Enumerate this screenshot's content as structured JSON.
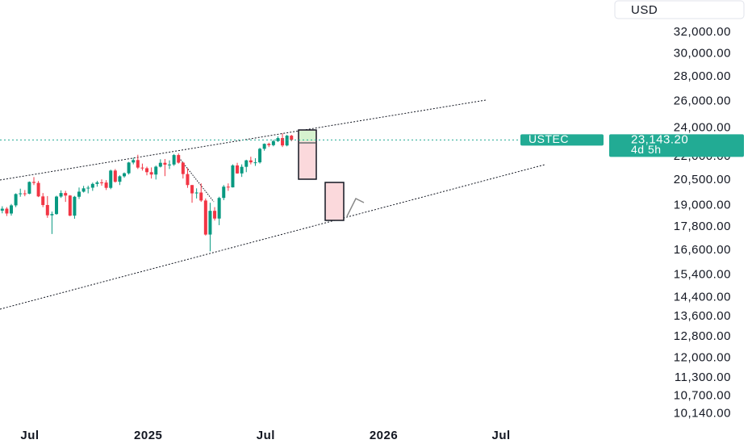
{
  "chart_data": {
    "type": "candlestick",
    "log_scale": true,
    "currency": "USD",
    "symbol": "USTEC",
    "countdown": "4d 5h",
    "last_price": {
      "value": 23143.2,
      "label": "23,143.20"
    },
    "up_color": "#089981",
    "down_color": "#f23645",
    "price_line_color": "#22ab94",
    "open": [
      18700,
      18810,
      18540,
      19000,
      19660,
      19700,
      19680,
      20390,
      20330,
      19520,
      19020,
      18440,
      18510,
      19510,
      19720,
      19570,
      18420,
      19500,
      19800,
      20000,
      20040,
      20270,
      20360,
      20350,
      20030,
      21100,
      20400,
      20740,
      20930,
      21620,
      21780,
      21290,
      21250,
      21000,
      20850,
      21350,
      21600,
      21480,
      21490,
      22110,
      21610,
      20880,
      20200,
      19700,
      19750,
      19280,
      17400,
      18690,
      18260,
      19430,
      20100,
      20060,
      21430,
      20920,
      21340,
      21760,
      21630,
      21630,
      22530,
      22870,
      22780,
      23060,
      23270,
      22760,
      23440
    ],
    "high": [
      18950,
      18900,
      19080,
      19700,
      19980,
      19900,
      20420,
      20690,
      20450,
      19720,
      19540,
      18650,
      19560,
      19880,
      19850,
      19600,
      19550,
      20050,
      20150,
      20160,
      20350,
      20460,
      20550,
      20500,
      21160,
      21200,
      20800,
      20980,
      21660,
      21920,
      22130,
      21550,
      21350,
      21300,
      21420,
      21830,
      21850,
      21760,
      22180,
      22220,
      21650,
      21250,
      20200,
      20000,
      20300,
      19400,
      19150,
      18900,
      19500,
      20200,
      20300,
      21500,
      21600,
      21500,
      21800,
      22000,
      21900,
      22600,
      22900,
      22950,
      23150,
      23400,
      23600,
      23500,
      23500
    ],
    "low": [
      18550,
      18400,
      18420,
      18900,
      19500,
      19530,
      19650,
      20200,
      19480,
      18900,
      18300,
      17430,
      18470,
      19430,
      19200,
      18390,
      18250,
      19370,
      19750,
      19700,
      19850,
      20100,
      20160,
      19900,
      19950,
      20350,
      20200,
      20650,
      20850,
      21500,
      21200,
      21100,
      20800,
      20600,
      20540,
      21300,
      20750,
      21200,
      21400,
      21550,
      20600,
      20030,
      19150,
      19400,
      19200,
      17350,
      16540,
      18150,
      17900,
      19300,
      19850,
      20050,
      20900,
      20700,
      21000,
      21500,
      21400,
      21550,
      22400,
      22650,
      22700,
      23000,
      22650,
      22700,
      23050
    ],
    "close": [
      18810,
      18540,
      19000,
      19660,
      19700,
      19680,
      20390,
      20330,
      19520,
      19020,
      18440,
      18510,
      19510,
      19720,
      19570,
      18420,
      19500,
      19800,
      20000,
      20040,
      20270,
      20360,
      20350,
      20030,
      21100,
      20400,
      20740,
      20930,
      21620,
      21780,
      21290,
      21250,
      21000,
      20850,
      21350,
      21600,
      21480,
      21490,
      22110,
      21610,
      20880,
      20200,
      19700,
      19750,
      19280,
      17400,
      18690,
      18260,
      19430,
      20100,
      20060,
      21430,
      20920,
      21340,
      21760,
      21630,
      21630,
      22530,
      22870,
      22780,
      23060,
      23270,
      22760,
      23440,
      23143.2
    ],
    "xlim": [
      -0.5,
      134.3
    ],
    "xticks": [
      {
        "value": 6.1,
        "label": "Jul"
      },
      {
        "value": 32.3,
        "label": "2025"
      },
      {
        "value": 58.3,
        "label": "Jul"
      },
      {
        "value": 84.4,
        "label": "2026"
      },
      {
        "value": 110.4,
        "label": "Jul"
      }
    ],
    "ylim": [
      9790,
      35280
    ],
    "yticks": [
      {
        "value": 32000,
        "label": "32,000.00"
      },
      {
        "value": 30000,
        "label": "30,000.00"
      },
      {
        "value": 28000,
        "label": "28,000.00"
      },
      {
        "value": 26000,
        "label": "26,000.00"
      },
      {
        "value": 24000,
        "label": "24,000.00"
      },
      {
        "value": 22000,
        "label": "22,000.00"
      },
      {
        "value": 20500,
        "label": "20,500.00"
      },
      {
        "value": 19000,
        "label": "19,000.00"
      },
      {
        "value": 17800,
        "label": "17,800.00"
      },
      {
        "value": 16600,
        "label": "16,600.00"
      },
      {
        "value": 15400,
        "label": "15,400.00"
      },
      {
        "value": 14400,
        "label": "14,400.00"
      },
      {
        "value": 13600,
        "label": "13,600.00"
      },
      {
        "value": 12800,
        "label": "12,800.00"
      },
      {
        "value": 12000,
        "label": "12,000.00"
      },
      {
        "value": 11300,
        "label": "11,300.00"
      },
      {
        "value": 10700,
        "label": "10,700.00"
      },
      {
        "value": 10140,
        "label": "10,140.00"
      }
    ]
  }
}
